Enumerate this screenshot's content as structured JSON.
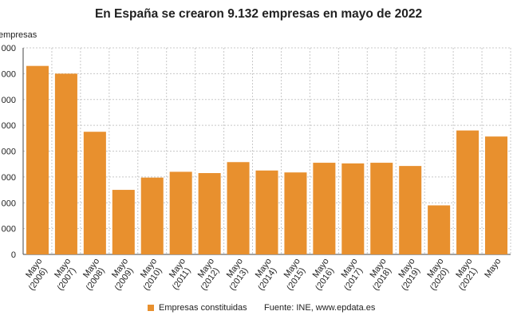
{
  "chart_data": {
    "type": "bar",
    "title": "En España se crearon 9.132 empresas en mayo de 2022",
    "ylabel": "empresas",
    "categories": [
      "Mayo\n(2006)",
      "Mayo\n(2007)",
      "Mayo\n(2008)",
      "Mayo\n(2009)",
      "Mayo\n(2010)",
      "Mayo\n(2011)",
      "Mayo\n(2012)",
      "Mayo\n(2013)",
      "Mayo\n(2014)",
      "Mayo\n(2015)",
      "Mayo\n(2016)",
      "Mayo\n(2017)",
      "Mayo\n(2018)",
      "Mayo\n(2019)",
      "Mayo\n(2020)",
      "Mayo\n(2021)",
      "Mayo"
    ],
    "series": [
      {
        "name": "Empresas constituidas",
        "values": [
          14600,
          14000,
          9500,
          5000,
          5950,
          6400,
          6300,
          7150,
          6500,
          6350,
          7100,
          7050,
          7100,
          6850,
          3800,
          9600,
          9132
        ]
      }
    ],
    "ylim": [
      0,
      16000
    ],
    "yticks": [
      0,
      2000,
      4000,
      6000,
      8000,
      10000,
      12000,
      14000,
      16000
    ],
    "ytick_labels": [
      "0",
      "000",
      "000",
      "000",
      "000",
      "000",
      "000",
      "000",
      "000"
    ],
    "grid": true,
    "legend_position": "bottom",
    "bar_color": "#e8902e"
  },
  "source_text": "Fuente: INE, www.epdata.es"
}
